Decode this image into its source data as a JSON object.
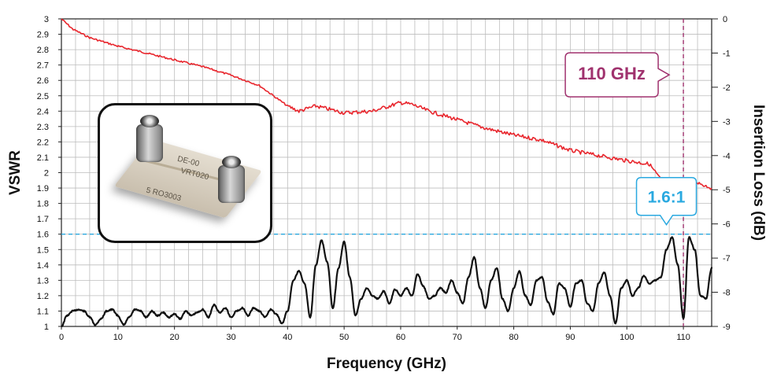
{
  "chart_data": {
    "type": "line",
    "xlabel": "Frequency (GHz)",
    "ylabel_left": "VSWR",
    "ylabel_right": "Insertion Loss (dB)",
    "xlim": [
      0,
      115
    ],
    "ylim_left": [
      1,
      3
    ],
    "ylim_right": [
      -9,
      0
    ],
    "x_ticks": [
      "0",
      "10",
      "20",
      "30",
      "40",
      "50",
      "60",
      "70",
      "80",
      "90",
      "100",
      "110"
    ],
    "y_left_ticks": [
      "1",
      "1.1",
      "1.2",
      "1.3",
      "1.4",
      "1.5",
      "1.6",
      "1.7",
      "1.8",
      "1.9",
      "2",
      "2.1",
      "2.2",
      "2.3",
      "2.4",
      "2.5",
      "2.6",
      "2.7",
      "2.8",
      "2.9",
      "3"
    ],
    "y_right_ticks": [
      "0",
      "-1",
      "-2",
      "-3",
      "-4",
      "-5",
      "-6",
      "-7",
      "-8",
      "-9"
    ],
    "grid": true,
    "series": [
      {
        "axis": "right",
        "color": "#e8262d",
        "x": [
          0,
          2,
          5,
          10,
          15,
          20,
          25,
          30,
          35,
          40,
          42,
          45,
          50,
          55,
          60,
          62,
          65,
          70,
          75,
          80,
          85,
          90,
          95,
          100,
          104,
          106,
          108,
          110,
          112,
          115
        ],
        "y": [
          0,
          -0.3,
          -0.55,
          -0.8,
          -1.0,
          -1.2,
          -1.4,
          -1.65,
          -1.95,
          -2.55,
          -2.7,
          -2.55,
          -2.75,
          -2.7,
          -2.45,
          -2.5,
          -2.7,
          -2.95,
          -3.2,
          -3.4,
          -3.55,
          -3.85,
          -4.0,
          -4.15,
          -4.25,
          -4.7,
          -4.75,
          -4.8,
          -4.75,
          -4.95
        ]
      },
      {
        "axis": "left",
        "color": "#111111",
        "x": [
          0,
          1,
          2,
          3,
          4,
          5,
          6,
          7,
          8,
          9,
          10,
          11,
          12,
          13,
          14,
          15,
          16,
          17,
          18,
          19,
          20,
          21,
          22,
          23,
          24,
          25,
          26,
          27,
          28,
          29,
          30,
          31,
          32,
          33,
          34,
          35,
          36,
          37,
          38,
          39,
          40,
          41,
          42,
          43,
          44,
          45,
          46,
          47,
          48,
          49,
          50,
          51,
          52,
          53,
          54,
          55,
          56,
          57,
          58,
          59,
          60,
          61,
          62,
          63,
          64,
          65,
          66,
          67,
          68,
          69,
          70,
          71,
          72,
          73,
          74,
          75,
          76,
          77,
          78,
          79,
          80,
          81,
          82,
          83,
          84,
          85,
          86,
          87,
          88,
          89,
          90,
          91,
          92,
          93,
          94,
          95,
          96,
          97,
          98,
          99,
          100,
          101,
          102,
          103,
          104,
          105,
          106,
          107,
          108,
          109,
          110,
          111,
          112,
          113,
          114,
          115
        ],
        "y": [
          1.0,
          1.07,
          1.1,
          1.11,
          1.1,
          1.06,
          1.01,
          1.05,
          1.1,
          1.11,
          1.07,
          1.01,
          1.06,
          1.11,
          1.1,
          1.06,
          1.1,
          1.07,
          1.09,
          1.06,
          1.08,
          1.05,
          1.1,
          1.07,
          1.09,
          1.11,
          1.06,
          1.14,
          1.09,
          1.12,
          1.06,
          1.1,
          1.12,
          1.07,
          1.12,
          1.1,
          1.06,
          1.11,
          1.08,
          1.02,
          1.1,
          1.3,
          1.36,
          1.28,
          1.06,
          1.4,
          1.56,
          1.42,
          1.12,
          1.38,
          1.55,
          1.32,
          1.07,
          1.18,
          1.25,
          1.2,
          1.18,
          1.23,
          1.15,
          1.24,
          1.2,
          1.25,
          1.2,
          1.34,
          1.26,
          1.18,
          1.2,
          1.25,
          1.22,
          1.3,
          1.22,
          1.15,
          1.32,
          1.45,
          1.25,
          1.12,
          1.3,
          1.38,
          1.18,
          1.1,
          1.25,
          1.36,
          1.2,
          1.14,
          1.3,
          1.32,
          1.16,
          1.08,
          1.28,
          1.25,
          1.13,
          1.28,
          1.3,
          1.15,
          1.1,
          1.28,
          1.35,
          1.2,
          1.02,
          1.25,
          1.3,
          1.2,
          1.25,
          1.33,
          1.28,
          1.3,
          1.32,
          1.5,
          1.58,
          1.4,
          1.05,
          1.58,
          1.5,
          1.2,
          1.18,
          1.38
        ]
      }
    ],
    "reference_lines": [
      {
        "axis": "left",
        "value": 1.6,
        "color": "#2aa9e0",
        "style": "dashed"
      },
      {
        "axis": "x",
        "value": 110,
        "color": "#a0326e",
        "style": "dashed"
      }
    ],
    "annotations": [
      {
        "text": "110 GHz",
        "color": "#a0326e",
        "x": 110,
        "y_right": -1.5
      },
      {
        "text": "1.6:1",
        "color": "#2aa9e0",
        "x": 107,
        "y_left": 1.6
      }
    ]
  },
  "inset": {
    "pcb_text": [
      "DE-00",
      "VRT020",
      "5 RO3003"
    ]
  }
}
